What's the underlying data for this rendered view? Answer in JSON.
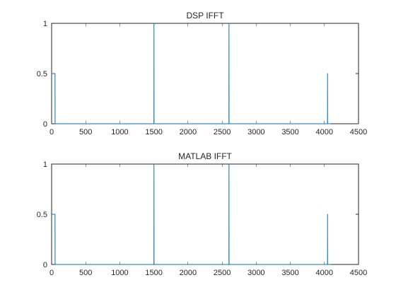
{
  "chart_data": [
    {
      "type": "line",
      "title": "DSP IFFT",
      "xlabel": "",
      "ylabel": "",
      "xlim": [
        0,
        4500
      ],
      "ylim": [
        0,
        1
      ],
      "xticks": [
        0,
        500,
        1000,
        1500,
        2000,
        2500,
        3000,
        3500,
        4000,
        4500
      ],
      "xtick_labels": [
        "0",
        "500",
        "1000",
        "1500",
        "2000",
        "2500",
        "3000",
        "3500",
        "4000",
        "4500"
      ],
      "yticks": [
        0,
        0.5,
        1
      ],
      "ytick_labels": [
        "0",
        "0.5",
        "1"
      ],
      "grid": false,
      "color": "#0072bd",
      "series": [
        {
          "x": [
            0,
            50,
            51,
            1500,
            1501,
            1502,
            2600,
            2601,
            2602,
            4045,
            4046,
            4047,
            4096
          ],
          "y": [
            0.5,
            0.5,
            0,
            0,
            1,
            0,
            0,
            1,
            0,
            0,
            0.5,
            0,
            0
          ]
        }
      ]
    },
    {
      "type": "line",
      "title": "MATLAB IFFT",
      "xlabel": "",
      "ylabel": "",
      "xlim": [
        0,
        4500
      ],
      "ylim": [
        0,
        1
      ],
      "xticks": [
        0,
        500,
        1000,
        1500,
        2000,
        2500,
        3000,
        3500,
        4000,
        4500
      ],
      "xtick_labels": [
        "0",
        "500",
        "1000",
        "1500",
        "2000",
        "2500",
        "3000",
        "3500",
        "4000",
        "4500"
      ],
      "yticks": [
        0,
        0.5,
        1
      ],
      "ytick_labels": [
        "0",
        "0.5",
        "1"
      ],
      "grid": false,
      "color": "#0072bd",
      "series": [
        {
          "x": [
            0,
            50,
            51,
            1500,
            1501,
            1502,
            2600,
            2601,
            2602,
            4045,
            4046,
            4047,
            4096
          ],
          "y": [
            0.5,
            0.5,
            0,
            0,
            1,
            0,
            0,
            1,
            0,
            0,
            0.5,
            0,
            0
          ]
        }
      ]
    }
  ]
}
